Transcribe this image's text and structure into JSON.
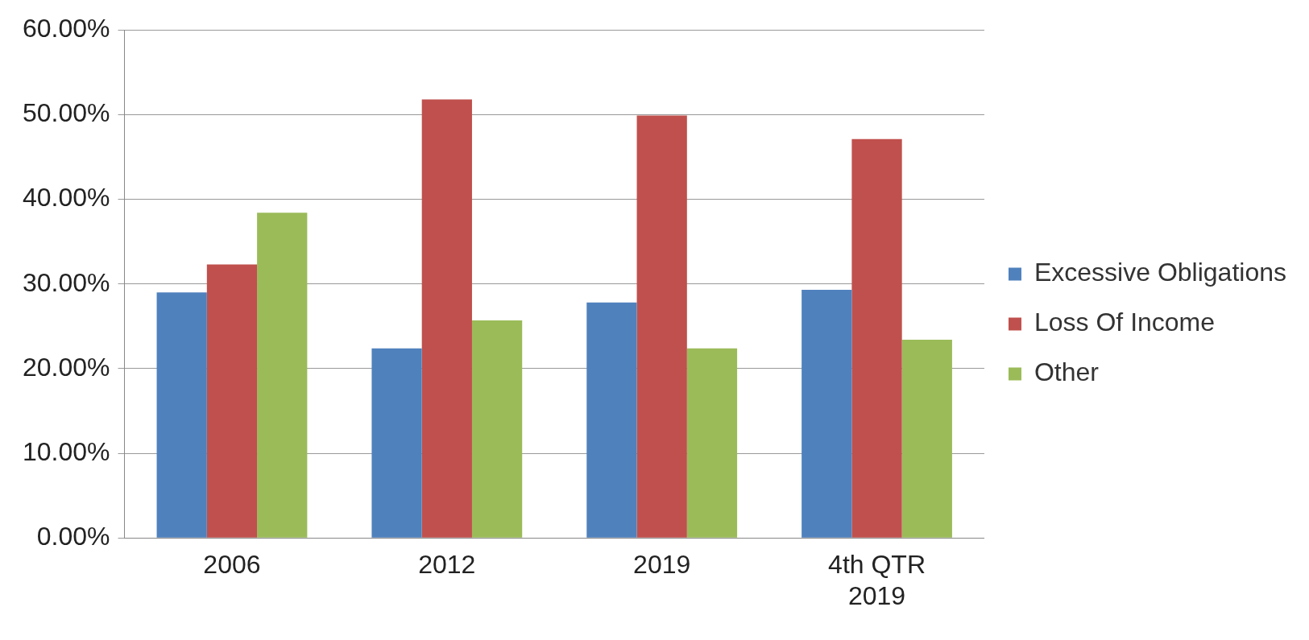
{
  "chart_data": {
    "type": "bar",
    "categories": [
      "2006",
      "2012",
      "2019",
      "4th QTR 2019"
    ],
    "series": [
      {
        "name": "Excessive Obligations",
        "color": "#4f81bd",
        "values": [
          29.0,
          22.4,
          27.8,
          29.3
        ]
      },
      {
        "name": "Loss Of Income",
        "color": "#c0504d",
        "values": [
          32.3,
          51.8,
          49.9,
          47.1
        ]
      },
      {
        "name": "Other",
        "color": "#9bbb59",
        "values": [
          38.4,
          25.7,
          22.4,
          23.4
        ]
      }
    ],
    "ylim": [
      0,
      60
    ],
    "yticks": [
      {
        "value": 0,
        "label": "0.00%"
      },
      {
        "value": 10,
        "label": "10.00%"
      },
      {
        "value": 20,
        "label": "20.00%"
      },
      {
        "value": 30,
        "label": "30.00%"
      },
      {
        "value": 40,
        "label": "40.00%"
      },
      {
        "value": 50,
        "label": "50.00%"
      },
      {
        "value": 60,
        "label": "60.00%"
      }
    ],
    "grid": "y",
    "legend": "right"
  }
}
